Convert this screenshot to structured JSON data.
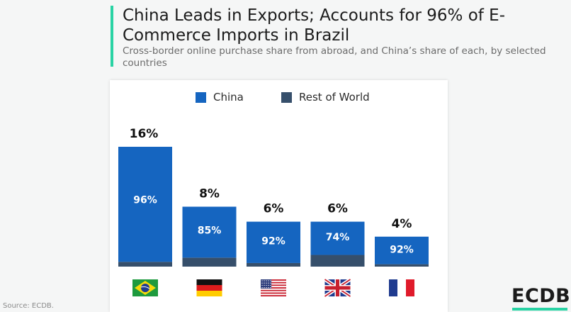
{
  "header": {
    "title": "China Leads in Exports; Accounts for 96% of E-Commerce Imports in Brazil",
    "subtitle": "Cross-border online purchase share from abroad, and China’s share of each, by selected countries"
  },
  "legend": {
    "china": "China",
    "rest": "Rest of World"
  },
  "colors": {
    "china": "#1565c0",
    "rest": "#364f6b",
    "accent": "#29d3a4"
  },
  "chart_data": {
    "type": "bar",
    "stacked": true,
    "categories": [
      "Brazil",
      "Germany",
      "United States",
      "United Kingdom",
      "France"
    ],
    "totals": [
      16,
      8,
      6,
      6,
      4
    ],
    "total_labels": [
      "16%",
      "8%",
      "6%",
      "6%",
      "4%"
    ],
    "china_share": [
      96,
      85,
      92,
      74,
      92
    ],
    "china_labels": [
      "96%",
      "85%",
      "92%",
      "74%",
      "92%"
    ],
    "series": [
      {
        "name": "China",
        "values": [
          15.36,
          6.8,
          5.52,
          4.44,
          3.68
        ]
      },
      {
        "name": "Rest of World",
        "values": [
          0.64,
          1.2,
          0.48,
          1.56,
          0.32
        ]
      }
    ],
    "flag_icons": [
      "brazil-flag-icon",
      "germany-flag-icon",
      "usa-flag-icon",
      "uk-flag-icon",
      "france-flag-icon"
    ],
    "ylim": [
      0,
      16
    ],
    "grid": false,
    "legend_position": "top"
  },
  "footer": {
    "source": "Source: ECDB.",
    "logo": "ECDB"
  }
}
